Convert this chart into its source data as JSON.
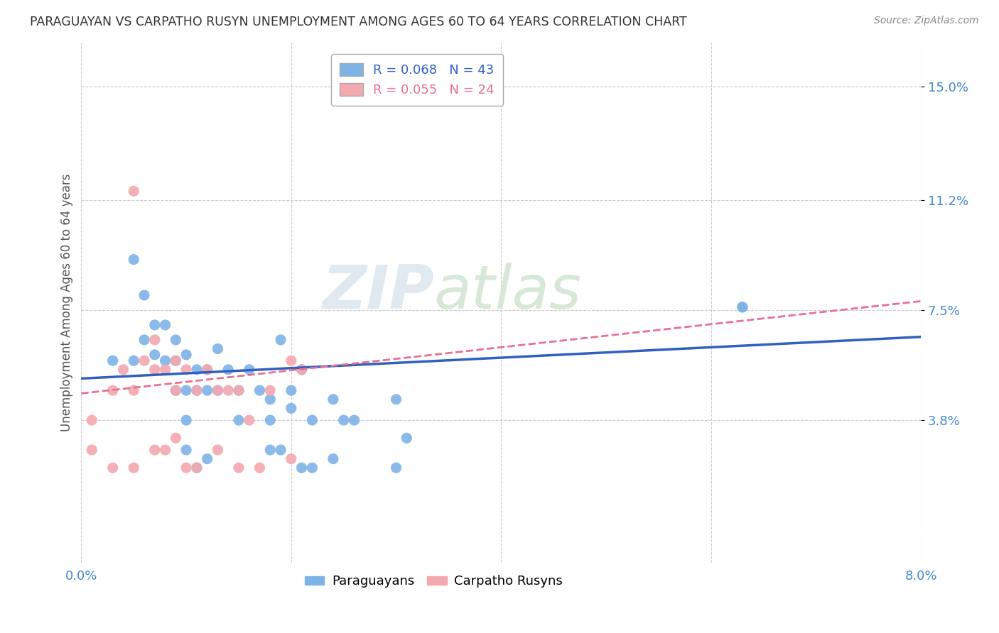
{
  "title": "PARAGUAYAN VS CARPATHO RUSYN UNEMPLOYMENT AMONG AGES 60 TO 64 YEARS CORRELATION CHART",
  "source": "Source: ZipAtlas.com",
  "ylabel": "Unemployment Among Ages 60 to 64 years",
  "xlim": [
    0.0,
    0.08
  ],
  "ylim": [
    -0.01,
    0.165
  ],
  "ytick_vals": [
    0.038,
    0.075,
    0.112,
    0.15
  ],
  "ytick_labels": [
    "3.8%",
    "7.5%",
    "11.2%",
    "15.0%"
  ],
  "xtick_vals": [
    0.0,
    0.02,
    0.04,
    0.06,
    0.08
  ],
  "xtick_labels": [
    "0.0%",
    "",
    "",
    "",
    "8.0%"
  ],
  "blue_color": "#7EB3E8",
  "pink_color": "#F4A8B0",
  "line_blue": "#3060C0",
  "line_pink": "#E87090",
  "paraguayan_x": [
    0.003,
    0.005,
    0.005,
    0.006,
    0.006,
    0.007,
    0.007,
    0.008,
    0.008,
    0.009,
    0.009,
    0.009,
    0.01,
    0.01,
    0.01,
    0.011,
    0.011,
    0.012,
    0.012,
    0.013,
    0.013,
    0.014,
    0.015,
    0.015,
    0.016,
    0.017,
    0.018,
    0.018,
    0.019,
    0.02,
    0.02,
    0.021,
    0.022,
    0.024,
    0.025,
    0.026,
    0.03,
    0.031,
    0.063,
    0.063
  ],
  "paraguayan_y": [
    0.058,
    0.092,
    0.058,
    0.08,
    0.065,
    0.07,
    0.06,
    0.07,
    0.058,
    0.065,
    0.058,
    0.048,
    0.06,
    0.048,
    0.038,
    0.055,
    0.048,
    0.055,
    0.048,
    0.062,
    0.048,
    0.055,
    0.048,
    0.038,
    0.055,
    0.048,
    0.045,
    0.038,
    0.065,
    0.042,
    0.048,
    0.055,
    0.038,
    0.045,
    0.038,
    0.038,
    0.045,
    0.032,
    0.076,
    0.076
  ],
  "paraguayan_x2": [
    0.01,
    0.011,
    0.012,
    0.018,
    0.019,
    0.021,
    0.022,
    0.024,
    0.03
  ],
  "paraguayan_y2": [
    0.028,
    0.022,
    0.025,
    0.028,
    0.028,
    0.022,
    0.022,
    0.025,
    0.022
  ],
  "carpatho_x": [
    0.001,
    0.003,
    0.004,
    0.005,
    0.006,
    0.007,
    0.007,
    0.008,
    0.009,
    0.009,
    0.01,
    0.011,
    0.012,
    0.013,
    0.014,
    0.015,
    0.016,
    0.018,
    0.02,
    0.021,
    0.005
  ],
  "carpatho_y": [
    0.038,
    0.048,
    0.055,
    0.048,
    0.058,
    0.065,
    0.055,
    0.055,
    0.058,
    0.048,
    0.055,
    0.048,
    0.055,
    0.048,
    0.048,
    0.048,
    0.038,
    0.048,
    0.058,
    0.055,
    0.115
  ],
  "carpatho_x2": [
    0.001,
    0.003,
    0.005,
    0.007,
    0.008,
    0.009,
    0.01,
    0.011,
    0.013,
    0.015,
    0.017,
    0.02
  ],
  "carpatho_y2": [
    0.028,
    0.022,
    0.022,
    0.028,
    0.028,
    0.032,
    0.022,
    0.022,
    0.028,
    0.022,
    0.022,
    0.025
  ],
  "blue_line_x": [
    0.0,
    0.08
  ],
  "blue_line_y": [
    0.052,
    0.066
  ],
  "pink_line_x": [
    0.0,
    0.08
  ],
  "pink_line_y": [
    0.047,
    0.078
  ],
  "watermark_zip": "ZIP",
  "watermark_atlas": "atlas",
  "background_color": "#FFFFFF",
  "grid_color": "#CCCCCC"
}
